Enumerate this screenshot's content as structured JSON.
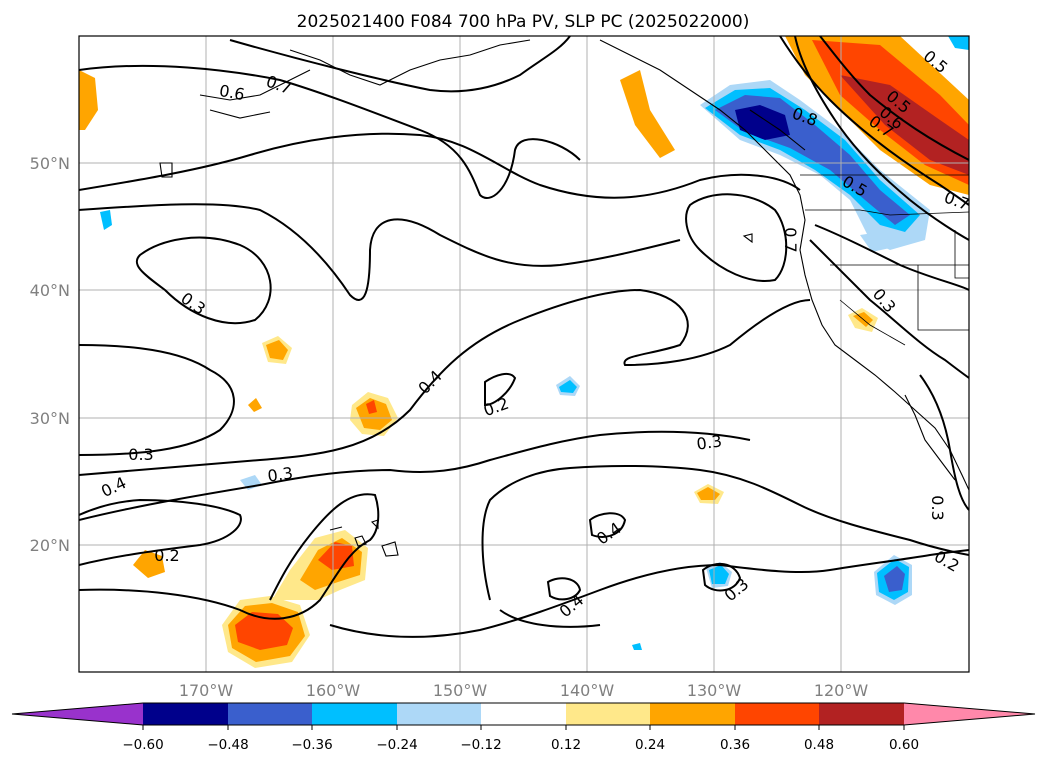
{
  "chart_data": {
    "type": "heatmap",
    "title": "2025021400 F084 700 hPa PV, SLP PC (2025022000)",
    "x_ticks": [
      "170°W",
      "160°W",
      "150°W",
      "140°W",
      "130°W",
      "120°W"
    ],
    "y_ticks": [
      "50°N",
      "40°N",
      "30°N",
      "20°N"
    ],
    "lon_range": [
      -180,
      -110
    ],
    "lat_range": [
      10,
      60
    ],
    "colorbar": {
      "ticks": [
        "−0.60",
        "−0.48",
        "−0.36",
        "−0.24",
        "−0.12",
        "0.12",
        "0.24",
        "0.36",
        "0.48",
        "0.60"
      ],
      "colors": [
        "#9932cc",
        "#00008b",
        "#3a5fcd",
        "#00bfff",
        "#add8f7",
        "#ffffff",
        "#ffe88a",
        "#ffa500",
        "#ff4500",
        "#b22222",
        "#ff88aa"
      ]
    },
    "contour_labels": [
      "0.6",
      "0.7",
      "0.5",
      "0.8",
      "0.5",
      "0.6",
      "0.7",
      "0.5",
      "0.7",
      "0.7",
      "0.3",
      "0.3",
      "0.4",
      "0.2",
      "0.3",
      "0.3",
      "0.4",
      "0.3",
      "0.2",
      "0.4",
      "0.4",
      "0.3",
      "0.3",
      "0.2"
    ]
  }
}
